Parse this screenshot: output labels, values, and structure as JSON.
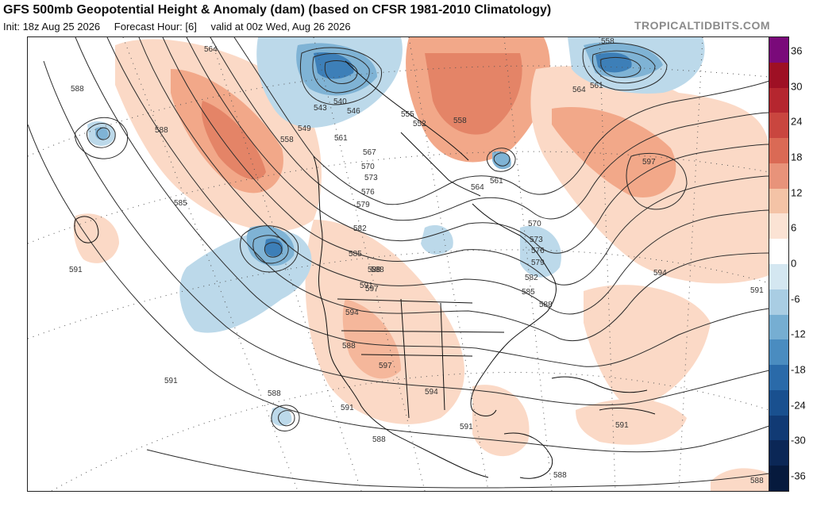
{
  "header": {
    "title": "GFS 500mb Geopotential Height & Anomaly (dam) (based on CFSR 1981-2010 Climatology)",
    "init": "Init: 18z Aug 25 2026",
    "forecast_hour": "Forecast Hour: [6]",
    "valid": "valid at 00z Wed, Aug 26 2026",
    "credit": "TROPICALTIDBITS.COM"
  },
  "colorbar": {
    "ticks": [
      "36",
      "30",
      "24",
      "18",
      "12",
      "6",
      "0",
      "-6",
      "-12",
      "-18",
      "-24",
      "-30",
      "-36"
    ],
    "colors": [
      "#7a0a7a",
      "#9e1024",
      "#b5262f",
      "#c9463f",
      "#da6a55",
      "#e8937a",
      "#f4c3a6",
      "#fbe3d4",
      "#ffffff",
      "#d4e7f1",
      "#a9cde3",
      "#76aed2",
      "#4a8cc0",
      "#2a6aa9",
      "#19508f",
      "#113a74",
      "#0b2756",
      "#061a3d"
    ]
  },
  "contour_labels": [
    "564",
    "543",
    "540",
    "546",
    "549",
    "558",
    "561",
    "567",
    "570",
    "573",
    "576",
    "579",
    "582",
    "585",
    "588",
    "591",
    "594",
    "597",
    "558",
    "561",
    "564",
    "597",
    "594",
    "591",
    "588",
    "555",
    "552",
    "558",
    "561",
    "564",
    "570",
    "573",
    "576",
    "579",
    "582",
    "585",
    "588",
    "588",
    "585",
    "591",
    "588",
    "588",
    "591",
    "594",
    "597",
    "591",
    "588",
    "591",
    "591",
    "588",
    "588",
    "588"
  ],
  "anomaly_colors": {
    "positive_light": "#fbd9c6",
    "positive_mid": "#f2a889",
    "positive_strong": "#e07a5f",
    "negative_light": "#bcd9ea",
    "negative_mid": "#7fb3d5",
    "negative_strong": "#3d7fb8"
  }
}
